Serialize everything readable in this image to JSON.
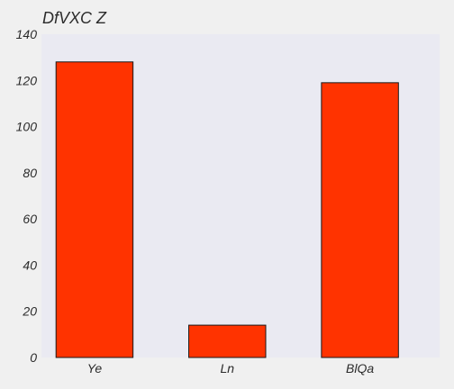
{
  "chart_data": {
    "type": "bar",
    "title": "DfVXC Z",
    "xlabel": "",
    "ylabel": "",
    "categories": [
      "Ye",
      "Ln",
      "BlQa"
    ],
    "values": [
      128,
      14,
      119
    ],
    "ylim": [
      0,
      140
    ],
    "yticks": [
      0,
      20,
      40,
      60,
      80,
      100,
      120,
      140
    ],
    "grid": false,
    "colors": {
      "bar_fill": "#ff3300",
      "bar_edge": "#1a1a1a",
      "plot_background": "#eaeaf2",
      "figure_background": "#f0f0f0"
    }
  }
}
